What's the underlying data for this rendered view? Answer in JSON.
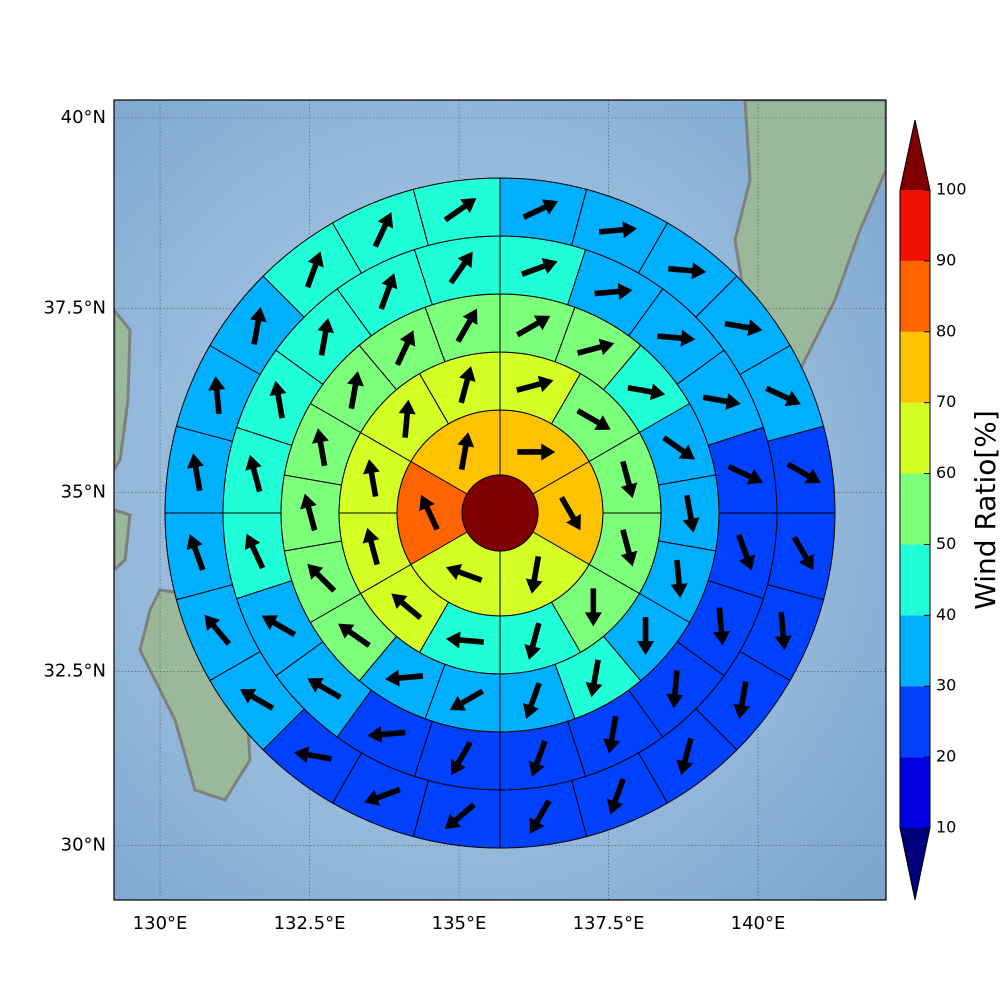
{
  "chart_data": {
    "type": "windrose_map",
    "projection": "mercator",
    "xlim": [
      129.23,
      142.14
    ],
    "ylim": [
      29.2,
      40.23
    ],
    "xticks": [
      {
        "value": 130,
        "label": "130°E"
      },
      {
        "value": 132.5,
        "label": "132.5°E"
      },
      {
        "value": 135,
        "label": "135°E"
      },
      {
        "value": 137.5,
        "label": "137.5°E"
      },
      {
        "value": 140,
        "label": "140°E"
      }
    ],
    "yticks": [
      {
        "value": 30,
        "label": "30°N"
      },
      {
        "value": 32.5,
        "label": "32.5°N"
      },
      {
        "value": 35,
        "label": "35°N"
      },
      {
        "value": 37.5,
        "label": "37.5°N"
      },
      {
        "value": 40,
        "label": "40°N"
      }
    ],
    "grid": true,
    "colorbar": {
      "label": "Wind Ratio[%]",
      "ticks": [
        10,
        20,
        30,
        40,
        50,
        60,
        70,
        80,
        90,
        100
      ],
      "extend": "both",
      "colors": [
        "#00007f",
        "#0000e0",
        "#0040ff",
        "#00b0ff",
        "#20ffd8",
        "#7cff7a",
        "#d4ff24",
        "#ffc200",
        "#ff6400",
        "#f01000",
        "#7f0000"
      ]
    },
    "center": {
      "value": 100
    },
    "rings": [
      {
        "values": [
          75,
          75,
          65,
          65,
          85,
          75
        ],
        "directions": [
          90,
          150,
          190,
          290,
          335,
          10
        ]
      },
      {
        "values": [
          65,
          55,
          55,
          55,
          55,
          45,
          45,
          65,
          65,
          65,
          65,
          65
        ],
        "directions": [
          75,
          120,
          165,
          165,
          180,
          195,
          275,
          310,
          345,
          350,
          5,
          15
        ]
      },
      {
        "values": [
          55,
          55,
          45,
          35,
          35,
          35,
          35,
          45,
          35,
          35,
          35,
          55,
          55,
          55,
          55,
          55,
          55,
          55
        ],
        "directions": [
          60,
          75,
          100,
          125,
          170,
          175,
          180,
          190,
          200,
          240,
          265,
          305,
          315,
          345,
          350,
          10,
          25,
          30
        ]
      },
      {
        "values": [
          45,
          35,
          35,
          35,
          25,
          25,
          25,
          25,
          25,
          25,
          25,
          25,
          35,
          35,
          45,
          45,
          45,
          45,
          45,
          45
        ],
        "directions": [
          70,
          85,
          95,
          100,
          115,
          160,
          175,
          185,
          190,
          200,
          210,
          265,
          300,
          300,
          335,
          345,
          350,
          10,
          20,
          35
        ]
      },
      {
        "values": [
          35,
          35,
          35,
          35,
          35,
          25,
          25,
          25,
          25,
          25,
          25,
          25,
          25,
          25,
          25,
          35,
          35,
          35,
          35,
          35,
          35,
          45,
          45,
          45
        ],
        "directions": [
          65,
          85,
          95,
          100,
          115,
          120,
          150,
          175,
          190,
          195,
          200,
          210,
          230,
          250,
          280,
          300,
          320,
          340,
          350,
          355,
          10,
          20,
          25,
          55
        ]
      }
    ]
  }
}
